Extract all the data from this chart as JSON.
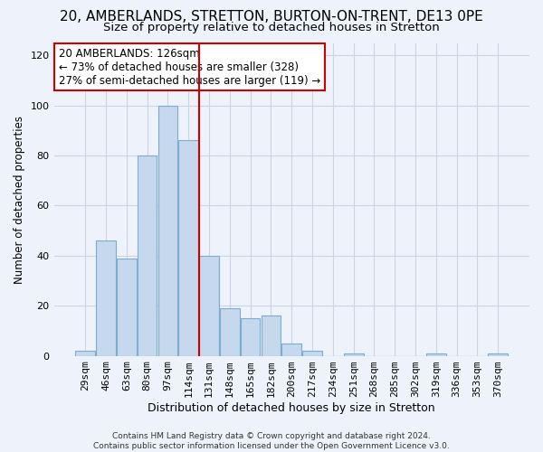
{
  "title": "20, AMBERLANDS, STRETTON, BURTON-ON-TRENT, DE13 0PE",
  "subtitle": "Size of property relative to detached houses in Stretton",
  "xlabel": "Distribution of detached houses by size in Stretton",
  "ylabel": "Number of detached properties",
  "bar_labels": [
    "29sqm",
    "46sqm",
    "63sqm",
    "80sqm",
    "97sqm",
    "114sqm",
    "131sqm",
    "148sqm",
    "165sqm",
    "182sqm",
    "200sqm",
    "217sqm",
    "234sqm",
    "251sqm",
    "268sqm",
    "285sqm",
    "302sqm",
    "319sqm",
    "336sqm",
    "353sqm",
    "370sqm"
  ],
  "bar_values": [
    2,
    46,
    39,
    80,
    100,
    86,
    40,
    19,
    15,
    16,
    5,
    2,
    0,
    1,
    0,
    0,
    0,
    1,
    0,
    0,
    1
  ],
  "bar_color": "#c5d8ed",
  "bar_edge_color": "#7aaed0",
  "vline_x": 5.5,
  "vline_color": "#cc0000",
  "annotation_line1": "20 AMBERLANDS: 126sqm",
  "annotation_line2": "← 73% of detached houses are smaller (328)",
  "annotation_line3": "27% of semi-detached houses are larger (119) →",
  "annotation_box_color": "#ffffff",
  "annotation_box_edge": "#cc0000",
  "ylim": [
    0,
    125
  ],
  "yticks": [
    0,
    20,
    40,
    60,
    80,
    100,
    120
  ],
  "grid_color": "#ccd4e4",
  "background_color": "#eef2fa",
  "footer": "Contains HM Land Registry data © Crown copyright and database right 2024.\nContains public sector information licensed under the Open Government Licence v3.0.",
  "title_fontsize": 11,
  "subtitle_fontsize": 9.5,
  "xlabel_fontsize": 9,
  "ylabel_fontsize": 8.5,
  "tick_fontsize": 8,
  "annotation_fontsize": 8.5,
  "footer_fontsize": 6.5
}
